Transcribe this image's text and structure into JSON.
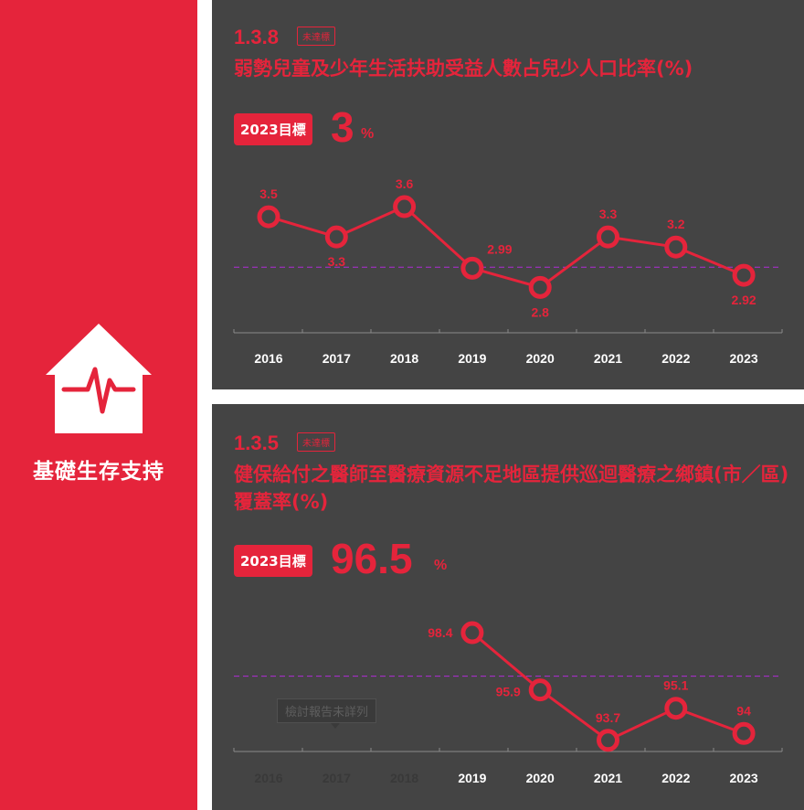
{
  "sidebar": {
    "title": "基礎生存支持",
    "icon": "house-heartbeat-icon",
    "color": "#e5243b"
  },
  "panels": [
    {
      "code": "1.3.8",
      "status": "未達標",
      "title": "弱勢兒童及少年生活扶助受益人數占兒少人口比率(%)",
      "target_label": "2023目標",
      "target_value": "3",
      "target_unit": "%"
    },
    {
      "code": "1.3.5",
      "status": "未達標",
      "title": "健保給付之醫師至醫療資源不足地區提供巡迴醫療之鄉鎮(市／區)覆蓋率(%)",
      "target_label": "2023目標",
      "target_value": "96.5",
      "target_unit": "%",
      "note": "檢討報告未詳列"
    }
  ],
  "chart_data": [
    {
      "type": "line",
      "categories": [
        "2016",
        "2017",
        "2018",
        "2019",
        "2020",
        "2021",
        "2022",
        "2023"
      ],
      "values": [
        3.5,
        3.3,
        3.6,
        2.99,
        2.8,
        3.3,
        3.2,
        2.92
      ],
      "labels": [
        "3.5",
        "3.3",
        "3.6",
        "2.99",
        "2.8",
        "3.3",
        "3.2",
        "2.92"
      ],
      "target": 3,
      "ylim": [
        2.7,
        3.7
      ],
      "color": "#e5243b",
      "target_line_color": "#b02bd6"
    },
    {
      "type": "line",
      "categories": [
        "2016",
        "2017",
        "2018",
        "2019",
        "2020",
        "2021",
        "2022",
        "2023"
      ],
      "values": [
        null,
        null,
        null,
        98.4,
        95.9,
        93.7,
        95.1,
        94
      ],
      "labels": [
        "",
        "",
        "",
        "98.4",
        "95.9",
        "93.7",
        "95.1",
        "94"
      ],
      "target": 96.5,
      "ylim": [
        93.0,
        99.4
      ],
      "color": "#e5243b",
      "target_line_color": "#b02bd6"
    }
  ]
}
